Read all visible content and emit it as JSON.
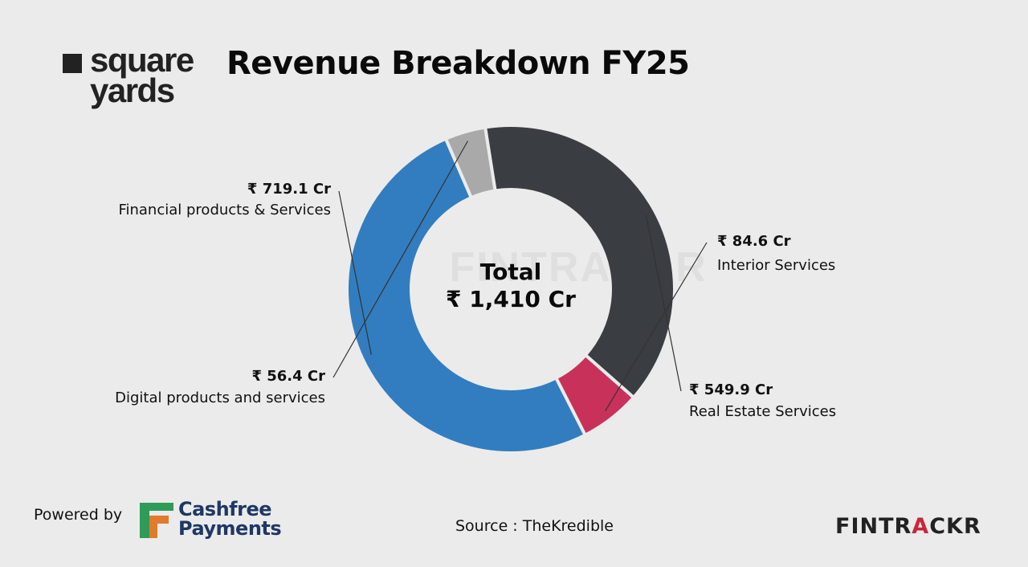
{
  "brand": {
    "logo_line1": "square",
    "logo_line2": "yards"
  },
  "chart_data": {
    "type": "pie",
    "variant": "donut",
    "title": "Revenue Breakdown FY25",
    "center_label": "Total",
    "center_value": "₹ 1,410 Cr",
    "currency": "₹",
    "unit": "Cr",
    "slices": [
      {
        "name": "Interior Services",
        "value": 84.6,
        "label": "₹ 84.6 Cr",
        "color": "#c8325a"
      },
      {
        "name": "Real Estate Services",
        "value": 549.9,
        "label": "₹ 549.9 Cr",
        "color": "#3a3d42"
      },
      {
        "name": "Digital products and services",
        "value": 56.4,
        "label": "₹ 56.4 Cr",
        "color": "#a9a9a9"
      },
      {
        "name": "Financial products & Services",
        "value": 719.1,
        "label": "₹ 719.1 Cr",
        "color": "#327dbf"
      }
    ],
    "watermark": "FINTRACKR"
  },
  "footer": {
    "powered_by": "Powered by",
    "sponsor_line1": "Cashfree",
    "sponsor_line2": "Payments",
    "source": "Source : TheKredible",
    "brand_part1": "FINTR",
    "brand_accent": "A",
    "brand_part2": "CKR"
  }
}
